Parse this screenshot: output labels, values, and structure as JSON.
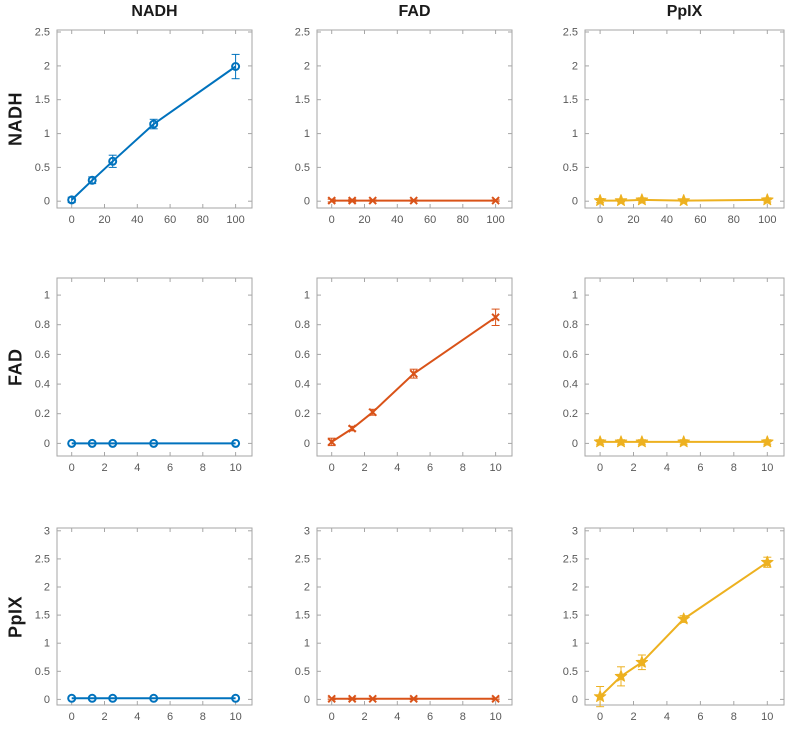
{
  "col_titles": [
    "NADH",
    "FAD",
    "PpIX"
  ],
  "row_labels": [
    "NADH",
    "FAD",
    "PpIX"
  ],
  "colors": {
    "blue": "#0072BD",
    "orange": "#D95319",
    "yellow": "#EDB120",
    "axis": "#a6a6a6",
    "tick_text": "#595959",
    "title_text": "#1a1a1a",
    "background": "#ffffff"
  },
  "chart_data": [
    {
      "id": "row-nadh-col-nadh",
      "row": "NADH",
      "col": "NADH",
      "type": "line",
      "marker": "circle",
      "color_key": "blue",
      "x": [
        0,
        12.5,
        25,
        50,
        100
      ],
      "y": [
        0.02,
        0.31,
        0.59,
        1.14,
        1.99
      ],
      "yerr": [
        0.04,
        0.05,
        0.09,
        0.07,
        0.18
      ],
      "xlim": [
        -9,
        110
      ],
      "ylim": [
        -0.1,
        2.53
      ],
      "xticks": [
        0,
        20,
        40,
        60,
        80,
        100
      ],
      "yticks": [
        0,
        0.5,
        1,
        1.5,
        2,
        2.5
      ],
      "grid": false,
      "legend": null
    },
    {
      "id": "row-nadh-col-fad",
      "row": "NADH",
      "col": "FAD",
      "type": "line",
      "marker": "x",
      "color_key": "orange",
      "x": [
        0,
        12.5,
        25,
        50,
        100
      ],
      "y": [
        0.01,
        0.01,
        0.01,
        0.01,
        0.01
      ],
      "yerr": [
        0.02,
        0.02,
        0.01,
        0.01,
        0.01
      ],
      "xlim": [
        -9,
        110
      ],
      "ylim": [
        -0.1,
        2.53
      ],
      "xticks": [
        0,
        20,
        40,
        60,
        80,
        100
      ],
      "yticks": [
        0,
        0.5,
        1,
        1.5,
        2,
        2.5
      ],
      "grid": false,
      "legend": null
    },
    {
      "id": "row-nadh-col-ppix",
      "row": "NADH",
      "col": "PpIX",
      "type": "line",
      "marker": "star",
      "color_key": "yellow",
      "x": [
        0,
        12.5,
        25,
        50,
        100
      ],
      "y": [
        0.01,
        0.01,
        0.02,
        0.01,
        0.02
      ],
      "yerr": [
        0.03,
        0.02,
        0.03,
        0.02,
        0.03
      ],
      "xlim": [
        -9,
        110
      ],
      "ylim": [
        -0.1,
        2.53
      ],
      "xticks": [
        0,
        20,
        40,
        60,
        80,
        100
      ],
      "yticks": [
        0,
        0.5,
        1,
        1.5,
        2,
        2.5
      ],
      "grid": false,
      "legend": null
    },
    {
      "id": "row-fad-col-nadh",
      "row": "FAD",
      "col": "NADH",
      "type": "line",
      "marker": "circle",
      "color_key": "blue",
      "x": [
        0,
        1.25,
        2.5,
        5,
        10
      ],
      "y": [
        0,
        0,
        0,
        0,
        0
      ],
      "yerr": [
        0,
        0,
        0,
        0,
        0
      ],
      "xlim": [
        -0.9,
        11
      ],
      "ylim": [
        -0.085,
        1.115
      ],
      "xticks": [
        0,
        2,
        4,
        6,
        8,
        10
      ],
      "yticks": [
        0,
        0.2,
        0.4,
        0.6,
        0.8,
        1
      ],
      "grid": false,
      "legend": null
    },
    {
      "id": "row-fad-col-fad",
      "row": "FAD",
      "col": "FAD",
      "type": "line",
      "marker": "x",
      "color_key": "orange",
      "x": [
        0,
        1.25,
        2.5,
        5,
        10
      ],
      "y": [
        0.01,
        0.1,
        0.21,
        0.47,
        0.85
      ],
      "yerr": [
        0.025,
        0.015,
        0.02,
        0.03,
        0.055
      ],
      "xlim": [
        -0.9,
        11
      ],
      "ylim": [
        -0.085,
        1.115
      ],
      "xticks": [
        0,
        2,
        4,
        6,
        8,
        10
      ],
      "yticks": [
        0,
        0.2,
        0.4,
        0.6,
        0.8,
        1
      ],
      "grid": false,
      "legend": null
    },
    {
      "id": "row-fad-col-ppix",
      "row": "FAD",
      "col": "PpIX",
      "type": "line",
      "marker": "star",
      "color_key": "yellow",
      "x": [
        0,
        1.25,
        2.5,
        5,
        10
      ],
      "y": [
        0.01,
        0.01,
        0.01,
        0.01,
        0.01
      ],
      "yerr": [
        0.015,
        0.015,
        0.015,
        0.015,
        0.015
      ],
      "xlim": [
        -0.9,
        11
      ],
      "ylim": [
        -0.085,
        1.115
      ],
      "xticks": [
        0,
        2,
        4,
        6,
        8,
        10
      ],
      "yticks": [
        0,
        0.2,
        0.4,
        0.6,
        0.8,
        1
      ],
      "grid": false,
      "legend": null
    },
    {
      "id": "row-ppix-col-nadh",
      "row": "PpIX",
      "col": "NADH",
      "type": "line",
      "marker": "circle",
      "color_key": "blue",
      "x": [
        0,
        1.25,
        2.5,
        5,
        10
      ],
      "y": [
        0.02,
        0.02,
        0.02,
        0.02,
        0.02
      ],
      "yerr": [
        0,
        0,
        0,
        0,
        0
      ],
      "xlim": [
        -0.9,
        11
      ],
      "ylim": [
        -0.1,
        3.05
      ],
      "xticks": [
        0,
        2,
        4,
        6,
        8,
        10
      ],
      "yticks": [
        0,
        0.5,
        1,
        1.5,
        2,
        2.5,
        3
      ],
      "grid": false,
      "legend": null
    },
    {
      "id": "row-ppix-col-fad",
      "row": "PpIX",
      "col": "FAD",
      "type": "line",
      "marker": "x",
      "color_key": "orange",
      "x": [
        0,
        1.25,
        2.5,
        5,
        10
      ],
      "y": [
        0.01,
        0.01,
        0.01,
        0.01,
        0.01
      ],
      "yerr": [
        0.015,
        0.015,
        0.01,
        0.015,
        0.015
      ],
      "xlim": [
        -0.9,
        11
      ],
      "ylim": [
        -0.1,
        3.05
      ],
      "xticks": [
        0,
        2,
        4,
        6,
        8,
        10
      ],
      "yticks": [
        0,
        0.5,
        1,
        1.5,
        2,
        2.5,
        3
      ],
      "grid": false,
      "legend": null
    },
    {
      "id": "row-ppix-col-ppix",
      "row": "PpIX",
      "col": "PpIX",
      "type": "line",
      "marker": "star",
      "color_key": "yellow",
      "x": [
        0,
        1.25,
        2.5,
        5,
        10
      ],
      "y": [
        0.05,
        0.41,
        0.66,
        1.43,
        2.44
      ],
      "yerr": [
        0.18,
        0.17,
        0.13,
        0.06,
        0.09
      ],
      "xlim": [
        -0.9,
        11
      ],
      "ylim": [
        -0.1,
        3.05
      ],
      "xticks": [
        0,
        2,
        4,
        6,
        8,
        10
      ],
      "yticks": [
        0,
        0.5,
        1,
        1.5,
        2,
        2.5,
        3
      ],
      "grid": false,
      "legend": null
    }
  ]
}
